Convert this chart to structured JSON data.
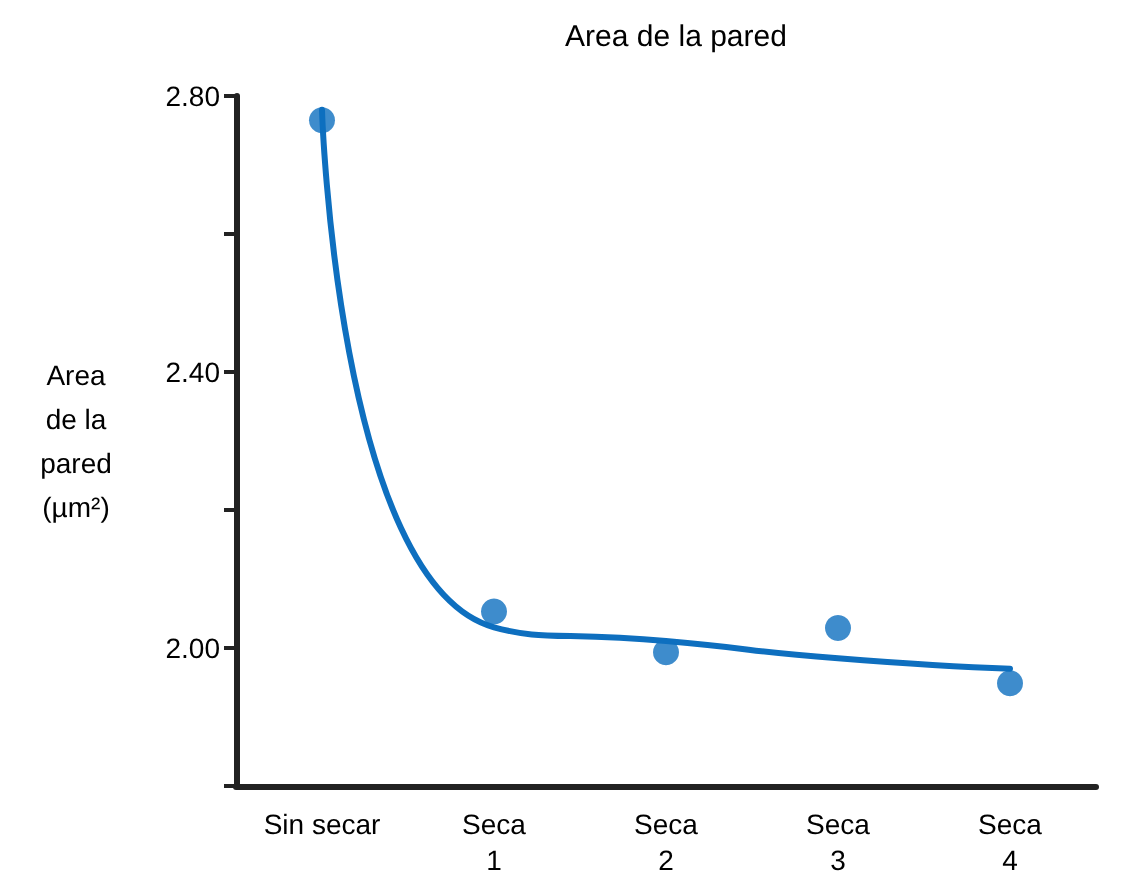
{
  "chart_data": {
    "type": "scatter",
    "title": "Area de la pared",
    "ylabel": "Area\nde la\npared\n(µm²)",
    "categories": [
      "Sin secar",
      "Seca\n1",
      "Seca\n2",
      "Seca\n3",
      "Seca\n4"
    ],
    "series": [
      {
        "color": "#0e6fbf",
        "values": [
          2.765,
          2.053,
          1.994,
          2.029,
          1.949
        ],
        "marker": "circle"
      },
      {
        "type": "line",
        "color": "#0e6fbf",
        "x": [
          "Sin secar",
          "Seca\n1",
          "Seca\n2",
          "Seca\n3",
          "Seca\n4"
        ],
        "values": [
          2.78,
          2.03,
          2.01,
          1.985,
          1.97
        ],
        "marker": "none",
        "line_style": "solid"
      }
    ],
    "ylim": [
      1.8,
      2.8
    ],
    "yticks": [
      {
        "value": 1.8,
        "label": null
      },
      {
        "value": 2,
        "label": "2.00"
      },
      {
        "value": 2.2,
        "label": null
      },
      {
        "value": 2.4,
        "label": "2.40"
      },
      {
        "value": 2.6,
        "label": null
      },
      {
        "value": 2.8,
        "label": "2.80"
      }
    ],
    "grid": false
  }
}
